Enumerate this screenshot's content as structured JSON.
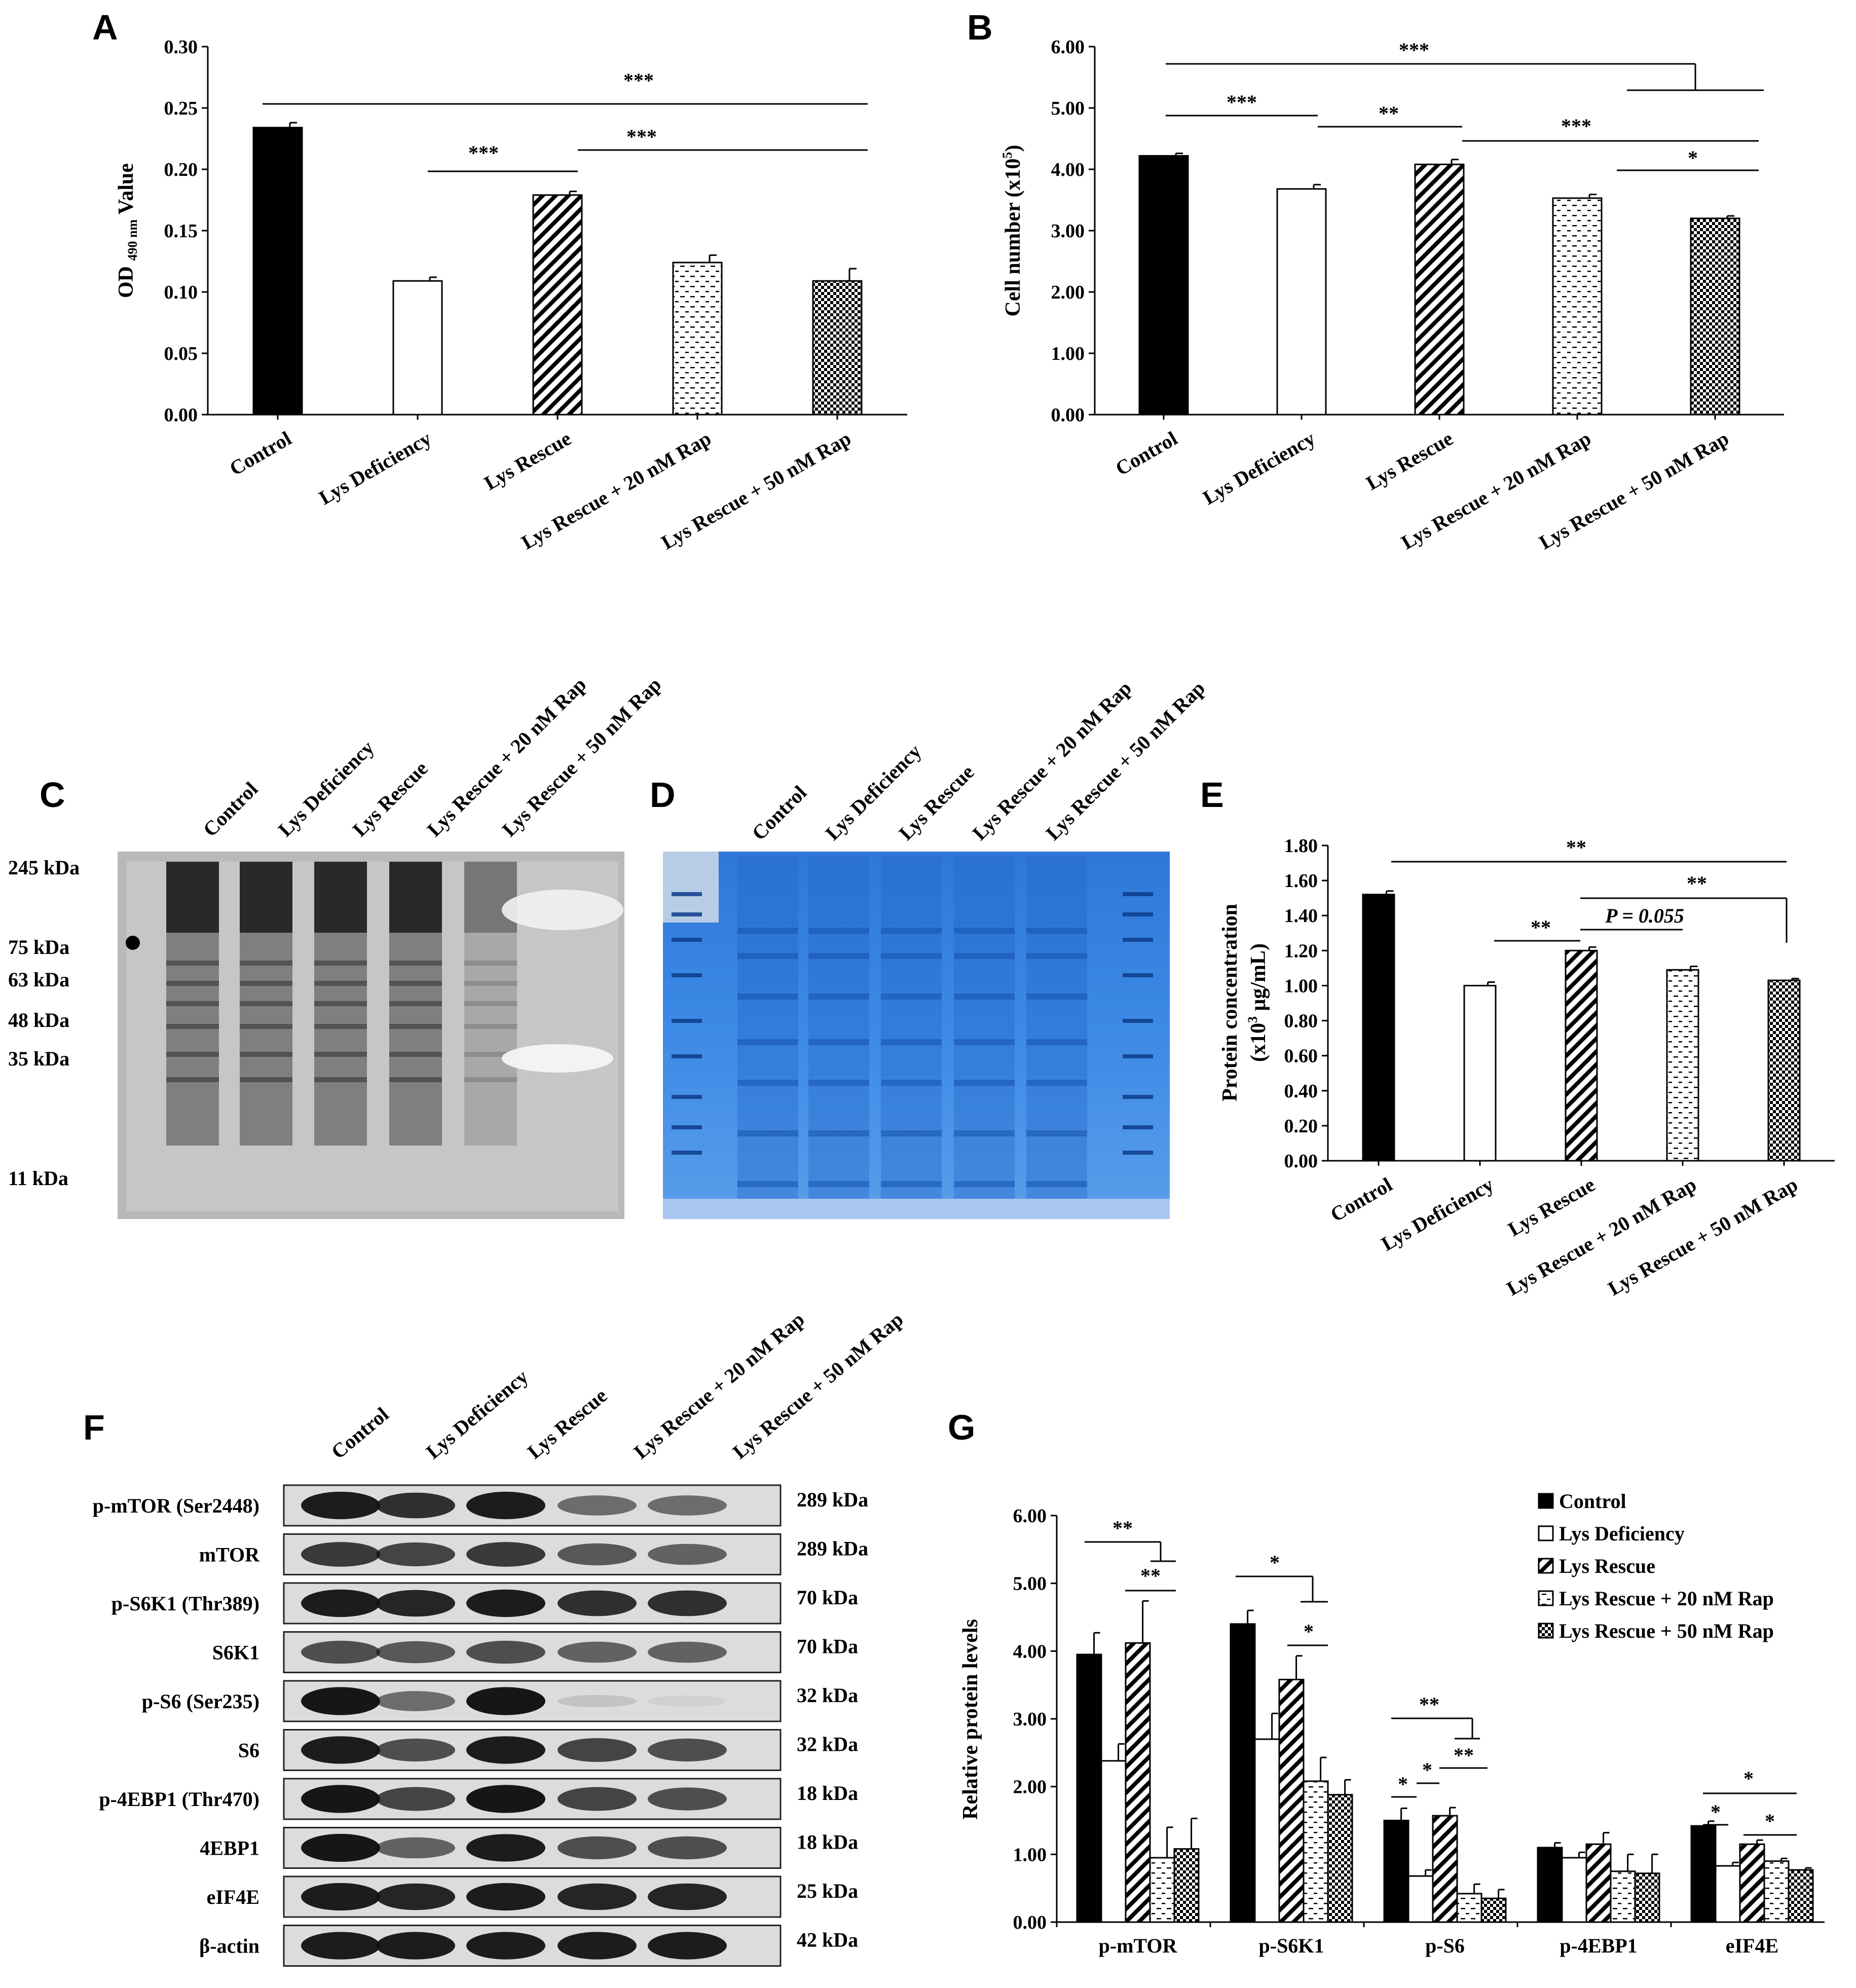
{
  "labels": {
    "panel_A": "A",
    "panel_B": "B",
    "panel_C": "C",
    "panel_D": "D",
    "panel_E": "E",
    "panel_F": "F",
    "panel_G": "G"
  },
  "lanes": [
    "Control",
    "Lys Deficiency",
    "Lys Rescue",
    "Lys Rescue + 20 nM Rap",
    "Lys Rescue + 50 nM Rap"
  ],
  "colors": {
    "bar_fill": "#000000",
    "gel_blue": "#3a86e0",
    "blot_dark": "#151515"
  },
  "chart_data": [
    {
      "id": "A",
      "type": "bar",
      "categories": [
        "Control",
        "Lys Deficiency",
        "Lys Rescue",
        "Lys Rescue + 20 nM Rap",
        "Lys Rescue + 50 nM Rap"
      ],
      "values": [
        0.234,
        0.109,
        0.179,
        0.124,
        0.109
      ],
      "errors": [
        0.004,
        0.003,
        0.003,
        0.006,
        0.01
      ],
      "patterns": [
        "solid",
        "open",
        "diag",
        "dash",
        "check"
      ],
      "ylabel_pre": "OD ",
      "ylabel_sub": "490 nm",
      "ylabel_post": " Value",
      "ylim": [
        0,
        0.3
      ],
      "yticks": [
        "0.00",
        "0.05",
        "0.10",
        "0.15",
        "0.20",
        "0.25",
        "0.30"
      ],
      "significance": [
        {
          "from": 0,
          "to": 4,
          "label": "***"
        },
        {
          "from": 1,
          "to": 2,
          "label": "***"
        },
        {
          "from": 2,
          "to": 4,
          "label": "***"
        }
      ]
    },
    {
      "id": "B",
      "type": "bar",
      "categories": [
        "Control",
        "Lys Deficiency",
        "Lys Rescue",
        "Lys Rescue + 20 nM Rap",
        "Lys Rescue + 50 nM Rap"
      ],
      "values": [
        4.22,
        3.68,
        4.08,
        3.53,
        3.2
      ],
      "errors": [
        0.04,
        0.07,
        0.08,
        0.06,
        0.04
      ],
      "patterns": [
        "solid",
        "open",
        "diag",
        "dash",
        "check"
      ],
      "ylabel_pre": "Cell number (x10",
      "ylabel_sup": "5",
      "ylabel_post": ")",
      "ylim": [
        0,
        6
      ],
      "yticks": [
        "0.00",
        "1.00",
        "2.00",
        "3.00",
        "4.00",
        "5.00",
        "6.00"
      ],
      "significance": [
        {
          "from": 0,
          "to": 4,
          "label": "***",
          "bracket": true
        },
        {
          "from": 0,
          "to": 1,
          "label": "***"
        },
        {
          "from": 1,
          "to": 2,
          "label": "**"
        },
        {
          "from": 2,
          "to": 4,
          "label": "***"
        },
        {
          "from": 3,
          "to": 4,
          "label": "*"
        }
      ]
    },
    {
      "id": "E",
      "type": "bar",
      "categories": [
        "Control",
        "Lys Deficiency",
        "Lys Rescue",
        "Lys Rescue + 20 nM Rap",
        "Lys Rescue + 50 nM Rap"
      ],
      "values": [
        1.52,
        1.0,
        1.2,
        1.09,
        1.03
      ],
      "errors": [
        0.02,
        0.02,
        0.02,
        0.02,
        0.01
      ],
      "patterns": [
        "solid",
        "open",
        "diag",
        "dash",
        "check"
      ],
      "ylabel_line1": "Protein concentration",
      "ylabel_line2_pre": "(x10",
      "ylabel_line2_sup": "3",
      "ylabel_line2_post": " μg/mL)",
      "ylim": [
        0,
        1.8
      ],
      "yticks": [
        "0.00",
        "0.20",
        "0.40",
        "0.60",
        "0.80",
        "1.00",
        "1.20",
        "1.40",
        "1.60",
        "1.80"
      ],
      "significance": [
        {
          "from": 0,
          "to": 4,
          "label": "**"
        },
        {
          "from": 1,
          "to": 2,
          "label": "**"
        },
        {
          "from": 2,
          "to": 3,
          "label": "P = 0.055"
        },
        {
          "from": 2,
          "to": 4,
          "label": "**",
          "drop": true
        }
      ]
    },
    {
      "id": "G",
      "type": "bar",
      "categories": [
        "p-mTOR",
        "p-S6K1",
        "p-S6",
        "p-4EBP1",
        "eIF4E"
      ],
      "ylabel": "Relative protein levels",
      "ylim": [
        0,
        6
      ],
      "yticks": [
        "0.00",
        "1.00",
        "2.00",
        "3.00",
        "4.00",
        "5.00",
        "6.00"
      ],
      "series": [
        {
          "name": "Control",
          "pattern": "solid",
          "values": [
            3.95,
            4.4,
            1.5,
            1.1,
            1.42
          ],
          "errors": [
            0.32,
            0.2,
            0.18,
            0.07,
            0.07
          ]
        },
        {
          "name": "Lys Deficiency",
          "pattern": "open",
          "values": [
            2.38,
            2.7,
            0.68,
            0.95,
            0.83
          ],
          "errors": [
            0.25,
            0.38,
            0.09,
            0.08,
            0.05
          ]
        },
        {
          "name": "Lys Rescue",
          "pattern": "diag",
          "values": [
            4.12,
            3.58,
            1.57,
            1.15,
            1.15
          ],
          "errors": [
            0.62,
            0.35,
            0.12,
            0.17,
            0.06
          ]
        },
        {
          "name": "Lys Rescue + 20 nM Rap",
          "pattern": "dash",
          "values": [
            0.95,
            2.08,
            0.42,
            0.75,
            0.9
          ],
          "errors": [
            0.45,
            0.35,
            0.14,
            0.25,
            0.04
          ]
        },
        {
          "name": "Lys Rescue + 50 nM Rap",
          "pattern": "check",
          "values": [
            1.08,
            1.88,
            0.35,
            0.72,
            0.77
          ],
          "errors": [
            0.45,
            0.22,
            0.13,
            0.28,
            0.03
          ]
        }
      ],
      "significance": [
        {
          "group": 0,
          "from": 0,
          "to": 4,
          "label": "**",
          "bracket": true
        },
        {
          "group": 0,
          "from": 2,
          "to": 4,
          "label": "**"
        },
        {
          "group": 1,
          "from": 0,
          "to": 4,
          "label": "*",
          "bracket": true
        },
        {
          "group": 1,
          "from": 2,
          "to": 4,
          "label": "*"
        },
        {
          "group": 2,
          "from": 0,
          "to": 4,
          "label": "**",
          "bracket": true
        },
        {
          "group": 2,
          "from": 0,
          "to": 1,
          "label": "*"
        },
        {
          "group": 2,
          "from": 1,
          "to": 2,
          "label": "*"
        },
        {
          "group": 2,
          "from": 2,
          "to": 4,
          "label": "**"
        },
        {
          "group": 4,
          "from": 0,
          "to": 4,
          "label": "*"
        },
        {
          "group": 4,
          "from": 0,
          "to": 1,
          "label": "*"
        },
        {
          "group": 4,
          "from": 2,
          "to": 4,
          "label": "*"
        }
      ]
    }
  ],
  "marker_C": [
    "245 kDa",
    "75 kDa",
    "63 kDa",
    "48 kDa",
    "35 kDa",
    "11 kDa"
  ],
  "blots_F": [
    {
      "label": "p-mTOR (Ser2448)",
      "kda": "289 kDa",
      "intensity": [
        0.95,
        0.85,
        0.95,
        0.55,
        0.55
      ]
    },
    {
      "label": "mTOR",
      "kda": "289 kDa",
      "intensity": [
        0.8,
        0.75,
        0.8,
        0.65,
        0.6
      ]
    },
    {
      "label": "p-S6K1 (Thr389)",
      "kda": "70 kDa",
      "intensity": [
        0.95,
        0.9,
        0.95,
        0.85,
        0.85
      ]
    },
    {
      "label": "S6K1",
      "kda": "70 kDa",
      "intensity": [
        0.7,
        0.65,
        0.7,
        0.6,
        0.6
      ]
    },
    {
      "label": "p-S6 (Ser235)",
      "kda": "32 kDa",
      "intensity": [
        0.98,
        0.55,
        0.98,
        0.12,
        0.06
      ]
    },
    {
      "label": "S6",
      "kda": "32 kDa",
      "intensity": [
        0.95,
        0.7,
        0.95,
        0.75,
        0.7
      ]
    },
    {
      "label": "p-4EBP1 (Thr470)",
      "kda": "18 kDa",
      "intensity": [
        0.98,
        0.75,
        0.98,
        0.75,
        0.7
      ]
    },
    {
      "label": "4EBP1",
      "kda": "18 kDa",
      "intensity": [
        0.98,
        0.6,
        0.95,
        0.7,
        0.7
      ]
    },
    {
      "label": "eIF4E",
      "kda": "25 kDa",
      "intensity": [
        0.95,
        0.9,
        0.95,
        0.9,
        0.9
      ]
    },
    {
      "label": "β-actin",
      "kda": "42 kDa",
      "intensity": [
        0.95,
        0.95,
        0.95,
        0.95,
        0.95
      ]
    }
  ]
}
